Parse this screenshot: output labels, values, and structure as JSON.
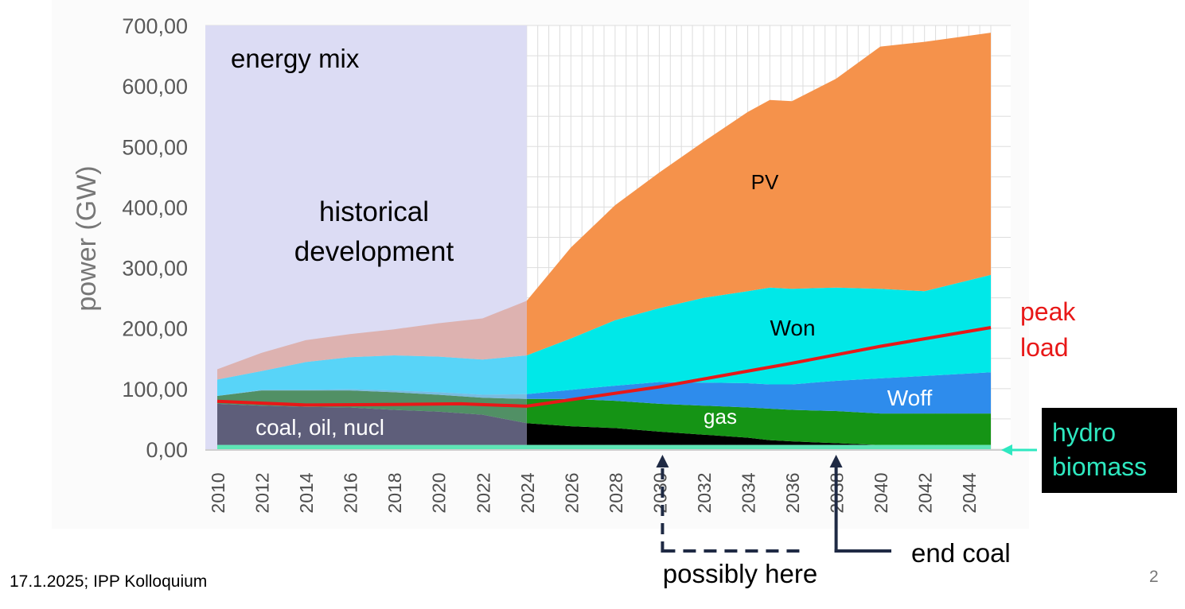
{
  "chart_data": {
    "type": "area",
    "title": "energy mix",
    "ylabel": "power (GW)",
    "xlabel": "",
    "ylim": [
      0,
      700
    ],
    "xlim": [
      2010,
      2045
    ],
    "y_ticks": [
      "0,00",
      "100,00",
      "200,00",
      "300,00",
      "400,00",
      "500,00",
      "600,00",
      "700,00"
    ],
    "x_ticks": [
      "2010",
      "2012",
      "2014",
      "2016",
      "2018",
      "2020",
      "2022",
      "2024",
      "2026",
      "2028",
      "2030",
      "2032",
      "2034",
      "2036",
      "2038",
      "2040",
      "2042",
      "2044"
    ],
    "x_tick_values": [
      2010,
      2012,
      2014,
      2016,
      2018,
      2020,
      2022,
      2024,
      2026,
      2028,
      2030,
      2032,
      2034,
      2036,
      2038,
      2040,
      2042,
      2044
    ],
    "stack_base_gw": 7,
    "x": [
      2010,
      2012,
      2014,
      2016,
      2018,
      2020,
      2022,
      2024,
      2026,
      2028,
      2030,
      2032,
      2034,
      2035,
      2036,
      2038,
      2040,
      2042,
      2045
    ],
    "series": [
      {
        "name": "coal, oil, nucl",
        "color": "#000000",
        "hist_color": "#5e5e7a",
        "values": [
          68,
          65,
          63,
          62,
          58,
          55,
          50,
          36,
          31,
          28,
          22,
          17,
          12,
          8,
          6,
          3,
          0,
          0,
          0
        ]
      },
      {
        "name": "gas",
        "color": "#159415",
        "hist_color": "#519065",
        "values": [
          13,
          25,
          27,
          28,
          29,
          28,
          28,
          40,
          45,
          45,
          46,
          48,
          50,
          52,
          52,
          53,
          52,
          52,
          52
        ]
      },
      {
        "name": "Woff",
        "color": "#2e8cec",
        "hist_color": "#79bce0",
        "values": [
          0,
          1,
          1,
          2,
          3,
          4,
          5,
          8,
          15,
          25,
          36,
          38,
          40,
          40,
          42,
          50,
          58,
          62,
          68
        ]
      },
      {
        "name": "Won",
        "color": "#00e8e8",
        "hist_color": "#58d4f8",
        "values": [
          27,
          31,
          46,
          53,
          58,
          59,
          58,
          64,
          85,
          108,
          122,
          140,
          152,
          160,
          158,
          154,
          148,
          140,
          161
        ]
      },
      {
        "name": "PV",
        "color": "#f5924b",
        "hist_color": "#ddb2b0",
        "values": [
          17,
          30,
          36,
          38,
          43,
          55,
          68,
          90,
          150,
          190,
          224,
          258,
          296,
          310,
          310,
          345,
          400,
          412,
          400
        ]
      }
    ],
    "peak_load": {
      "name": "peak load",
      "color": "#e81818",
      "x": [
        2010,
        2014,
        2018,
        2021,
        2024,
        2030,
        2036,
        2040,
        2045
      ],
      "values": [
        79,
        73,
        74,
        75,
        71,
        103,
        142,
        170,
        201
      ]
    },
    "hydro_biomass": {
      "name": "hydro biomass",
      "color": "#5ee5b5",
      "value": 7
    },
    "historical_range": [
      2010,
      2024
    ],
    "markers": {
      "possibly_here": {
        "year": 2030,
        "label": "possibly here"
      },
      "end_coal": {
        "year": 2038,
        "label": "end coal"
      }
    }
  },
  "labels": {
    "title": "energy mix",
    "historical": [
      "historical",
      "development"
    ],
    "coal": "coal, oil, nucl",
    "gas": "gas",
    "woff": "Woff",
    "won": "Won",
    "pv": "PV",
    "peak_load": [
      "peak",
      "load"
    ],
    "hydro_biomass": [
      "hydro",
      "biomass"
    ],
    "possibly_here": "possibly here",
    "end_coal": "end coal"
  },
  "footer": "17.1.2025; IPP Kolloquium",
  "page_number": "2"
}
